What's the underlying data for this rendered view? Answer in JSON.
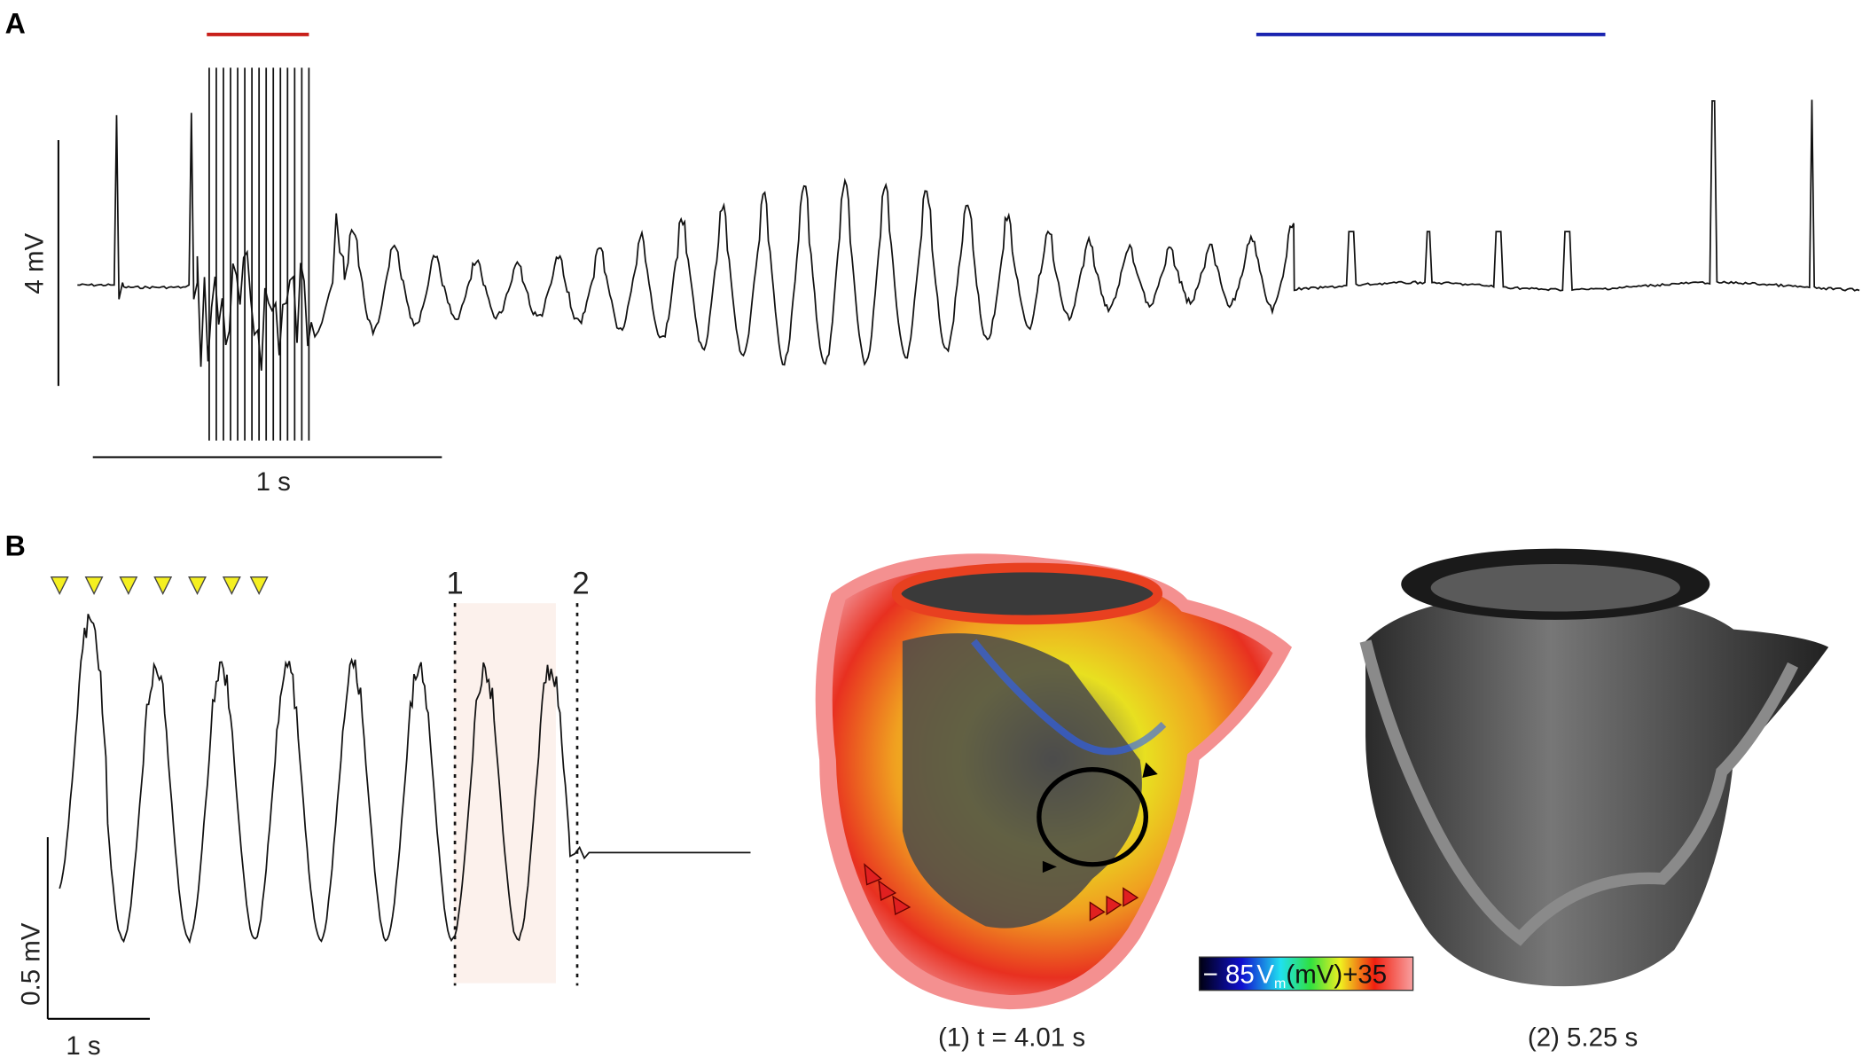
{
  "panel_a": {
    "label": "A",
    "scale_bar_voltage": "4 mV",
    "scale_bar_time": "1 s"
  },
  "panel_b": {
    "label": "B",
    "marker_1": "1",
    "marker_2": "2",
    "scale_bar_voltage": "0.5 mV",
    "scale_bar_time": "1 s",
    "colorbar": {
      "min_label": "− 85",
      "symbol": "V",
      "subscript": "m",
      "unit": "(mV)",
      "max_label": "+35"
    },
    "caption_1": "(1) t = 4.01 s",
    "caption_2": "(2) 5.25 s"
  }
}
